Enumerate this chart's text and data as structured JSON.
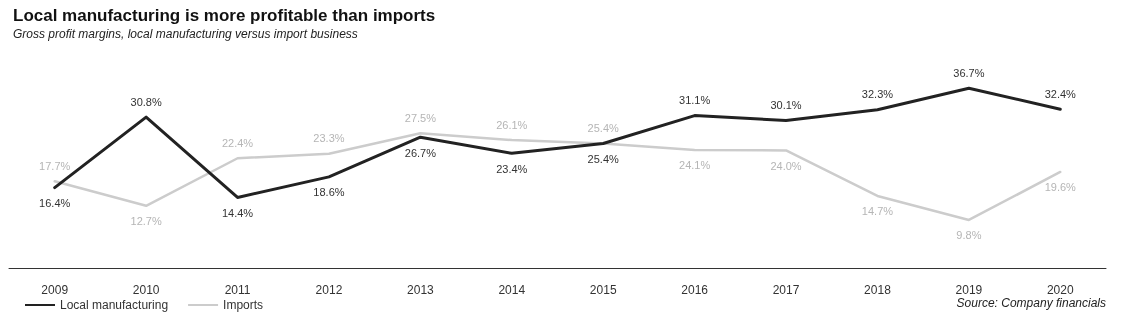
{
  "chart_data": {
    "type": "line",
    "title": "Local manufacturing is more profitable than imports",
    "subtitle": "Gross profit margins, local manufacturing versus import business",
    "categories": [
      "2009",
      "2010",
      "2011",
      "2012",
      "2013",
      "2014",
      "2015",
      "2016",
      "2017",
      "2018",
      "2019",
      "2020"
    ],
    "series": [
      {
        "name": "Local manufacturing",
        "color": "#222222",
        "values": [
          16.4,
          30.8,
          14.4,
          18.6,
          26.7,
          23.4,
          25.4,
          31.1,
          30.1,
          32.3,
          36.7,
          32.4
        ],
        "value_labels": [
          "16.4%",
          "30.8%",
          "14.4%",
          "18.6%",
          "26.7%",
          "23.4%",
          "25.4%",
          "31.1%",
          "30.1%",
          "32.3%",
          "36.7%",
          "32.4%"
        ]
      },
      {
        "name": "Imports",
        "color": "#cccccc",
        "values": [
          17.7,
          12.7,
          22.4,
          23.3,
          27.5,
          26.1,
          25.4,
          24.1,
          24.0,
          14.7,
          9.8,
          19.6
        ],
        "value_labels": [
          "17.7%",
          "12.7%",
          "22.4%",
          "23.3%",
          "27.5%",
          "26.1%",
          "25.4%",
          "24.1%",
          "24.0%",
          "14.7%",
          "9.8%",
          "19.6%"
        ]
      }
    ],
    "grid": false,
    "legend": "bottom left",
    "marker": "none",
    "line_style": "solid",
    "tick_labels": "x",
    "annotations": [
      "Source: Company financials"
    ]
  }
}
